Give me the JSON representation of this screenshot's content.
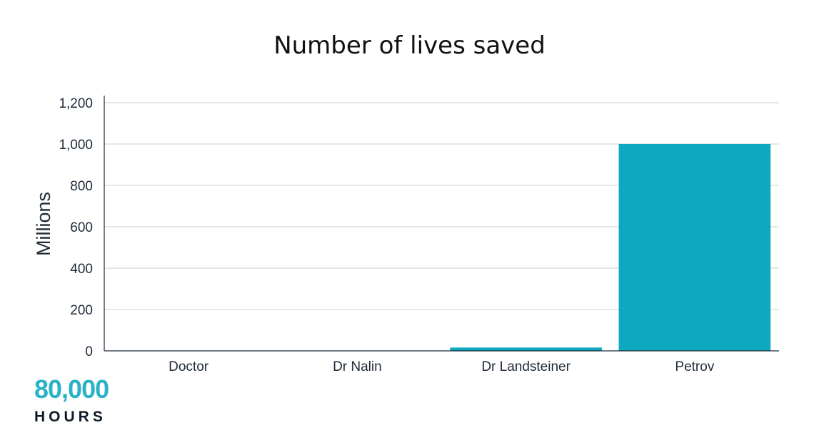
{
  "chart_data": {
    "type": "bar",
    "title": "Number of lives saved",
    "ylabel": "Millions",
    "xlabel": "",
    "categories": [
      "Doctor",
      "Dr Nalin",
      "Dr Landsteiner",
      "Petrov"
    ],
    "values": [
      0.0002,
      0.3,
      16,
      1000
    ],
    "ylim": [
      0,
      1200
    ],
    "yticks": [
      0,
      200,
      400,
      600,
      800,
      1000,
      1200
    ],
    "ytick_labels": [
      "0",
      "200",
      "400",
      "600",
      "800",
      "1,000",
      "1,200"
    ],
    "grid": true,
    "bar_color": "#0ea8bf",
    "legend": "none"
  },
  "logo": {
    "number": "80,000",
    "word": "HOURS",
    "number_color": "#2ab3c6",
    "word_color": "#0f1a2a"
  }
}
